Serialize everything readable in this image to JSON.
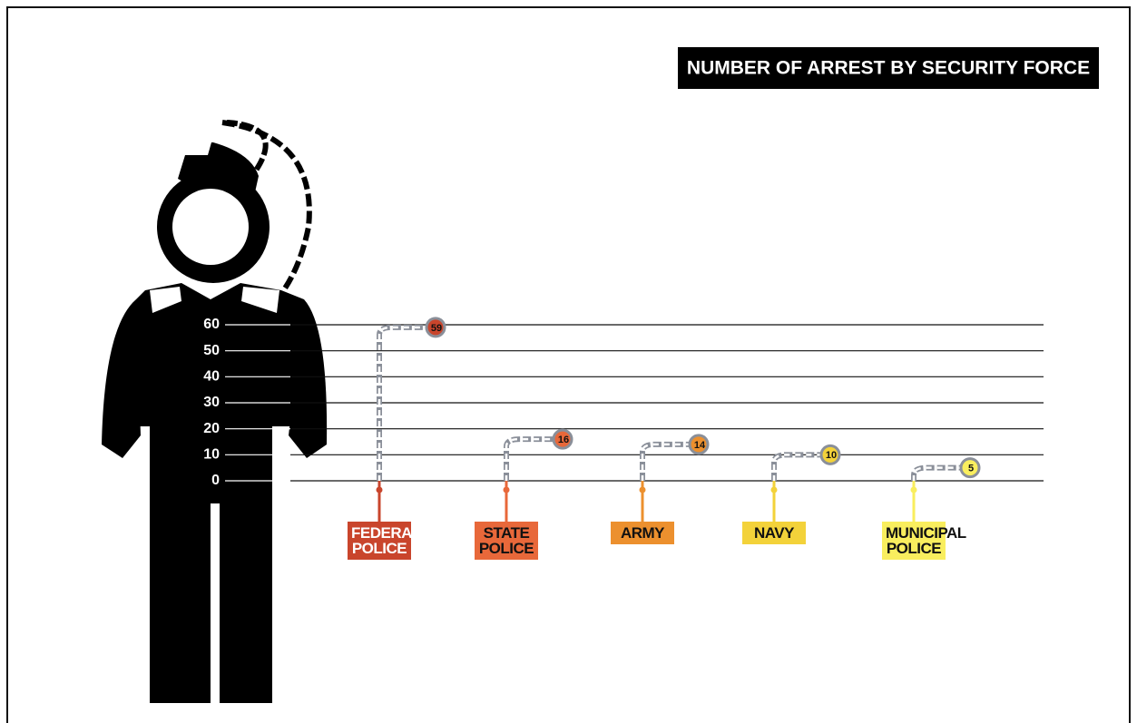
{
  "chart_data": {
    "type": "bar",
    "title": "NUMBER OF ARREST BY SECURITY FORCE",
    "categories": [
      "FEDERAL POLICE",
      "STATE POLICE",
      "ARMY",
      "NAVY",
      "MUNICIPAL POLICE"
    ],
    "values": [
      59,
      16,
      14,
      10,
      5
    ],
    "colors": [
      "#c9452c",
      "#e8683a",
      "#ec902e",
      "#f3d23a",
      "#f9ee5e"
    ],
    "ylim": [
      0,
      60
    ],
    "yticks": [
      0,
      10,
      20,
      30,
      40,
      50,
      60
    ],
    "grid": true
  }
}
